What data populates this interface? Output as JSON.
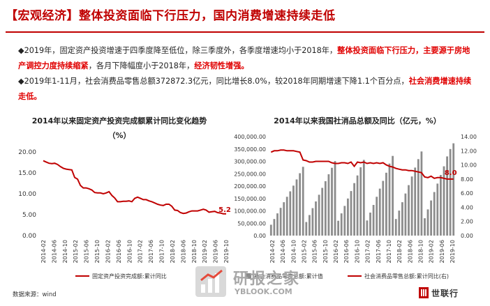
{
  "header": {
    "title": "【宏观经济】整体投资面临下行压力，国内消费增速持续走低"
  },
  "bullets": [
    {
      "parts": [
        {
          "text": "◆2019年，固定资产投资增速于四季度降至低位，除三季度外，各季度增速均小于2018年，",
          "red": false
        },
        {
          "text": "整体投资面临下行压力，主要源于房地产调控力度持续缩紧",
          "red": true
        },
        {
          "text": "，各月下降幅度小于2018年，",
          "red": false
        },
        {
          "text": "经济韧性增强。",
          "red": true
        }
      ]
    },
    {
      "parts": [
        {
          "text": "◆2019年1-11月，社会消费品零售总额372872.3亿元，同比增长8.0%，较2018年同期增速下降1.1个百分点，",
          "red": false
        },
        {
          "text": "社会消费增速持续走低。",
          "red": true
        }
      ]
    }
  ],
  "chart_titles": {
    "left": "2014年以来固定资产投资完成额累计同比变化趋势（%）",
    "right": "2014年以来我国社消品总额及同比（亿元，%）"
  },
  "footer": {
    "source": "数据来源：wind",
    "watermark_main": "研报之家",
    "watermark_sub": "YBLOOK.COM",
    "logo_text": "世联行"
  },
  "colors": {
    "brand_red": "#c00000",
    "line_red": "#c00000",
    "bar_gray": "#8c8c8c"
  },
  "chart_data": [
    {
      "type": "line",
      "title": "2014年以来固定资产投资完成额累计同比变化趋势（%）",
      "ylim": [
        0,
        20
      ],
      "yticks": [
        "0.00",
        "5.00",
        "10.00",
        "15.00",
        "20.00"
      ],
      "xticks": [
        "2014-02",
        "2014-06",
        "2014-10",
        "2015-02",
        "2015-06",
        "2015-10",
        "2016-02",
        "2016-06",
        "2016-10",
        "2017-02",
        "2017-06",
        "2017-10",
        "2018-02",
        "2018-06",
        "2018-10",
        "2019-02",
        "2019-06",
        "2019-10"
      ],
      "series": [
        {
          "name": "固定资产投资完成额:累计同比",
          "values": [
            17.9,
            17.6,
            17.3,
            17.2,
            17.3,
            17.0,
            16.5,
            16.1,
            15.9,
            15.8,
            15.7,
            13.9,
            13.5,
            12.0,
            11.4,
            11.4,
            11.2,
            10.9,
            10.3,
            10.2,
            10.2,
            10.0,
            10.2,
            10.5,
            9.6,
            9.0,
            8.1,
            8.1,
            8.2,
            8.2,
            8.3,
            8.1,
            8.9,
            9.2,
            8.9,
            8.6,
            8.6,
            8.3,
            8.1,
            7.8,
            7.5,
            7.3,
            7.2,
            7.5,
            7.5,
            7.0,
            6.1,
            6.0,
            5.5,
            5.3,
            5.4,
            5.7,
            5.9,
            5.9,
            5.9,
            6.1,
            6.3,
            6.1,
            5.6,
            5.7,
            5.8,
            5.5,
            5.4,
            5.2,
            5.2
          ]
        }
      ],
      "annotations": [
        "5.2"
      ]
    },
    {
      "type": "bar",
      "title": "2014年以来我国社消品总额及同比（亿元，%）",
      "ylim": [
        0,
        400000
      ],
      "yticks": [
        "0.00",
        "50,000.00",
        "100,000.00",
        "150,000.00",
        "200,000.00",
        "250,000.00",
        "300,000.00",
        "350,000.00",
        "400,000.00"
      ],
      "y2lim": [
        0,
        14
      ],
      "y2ticks": [
        "0.00",
        "2.00",
        "4.00",
        "6.00",
        "8.00",
        "10.00",
        "12.00",
        "14.00"
      ],
      "xticks": [
        "2014-02",
        "2014-06",
        "2014-10",
        "2015-02",
        "2015-06",
        "2015-10",
        "2016-02",
        "2016-06",
        "2016-10",
        "2017-02",
        "2017-06",
        "2017-10",
        "2018-02",
        "2018-06",
        "2018-10",
        "2019-02",
        "2019-06",
        "2019-10"
      ],
      "series": [
        {
          "name": "社会消费品零售总额:累计值",
          "values": [
            44000,
            67000,
            90000,
            112000,
            135000,
            157000,
            179000,
            202000,
            227000,
            252000,
            278000,
            55000,
            83000,
            111000,
            138000,
            165000,
            193000,
            220000,
            248000,
            274000,
            301000,
            60000,
            90000,
            120000,
            150000,
            180000,
            212000,
            243000,
            276000,
            306000,
            61000,
            93000,
            124000,
            157000,
            190000,
            221000,
            254000,
            291000,
            322000,
            67000,
            101000,
            135000,
            170000,
            204000,
            239000,
            275000,
            309000,
            340000,
            70000,
            106000,
            142000,
            176000,
            210000,
            245000,
            280000,
            320000,
            350000,
            372872
          ]
        },
        {
          "name": "社会消费品零售总额:累计同比(右)",
          "values": [
            11.8,
            12.0,
            12.0,
            12.1,
            12.1,
            12.0,
            12.0,
            12.0,
            11.9,
            11.8,
            10.7,
            10.6,
            10.4,
            10.4,
            10.5,
            10.5,
            10.5,
            10.5,
            10.5,
            10.3,
            10.2,
            10.2,
            10.3,
            10.3,
            10.2,
            10.4,
            9.8,
            10.4,
            10.3,
            10.4,
            10.2,
            10.3,
            10.2,
            10.3,
            10.2,
            10.3,
            10.0,
            9.8,
            9.7,
            9.5,
            9.4,
            9.3,
            9.3,
            9.2,
            9.2,
            9.1,
            9.0,
            8.9,
            8.3,
            8.2,
            8.4,
            8.1,
            8.2,
            8.2,
            8.1,
            8.0,
            8.0,
            8.0
          ]
        }
      ],
      "annotations": [
        "8.0"
      ]
    }
  ]
}
